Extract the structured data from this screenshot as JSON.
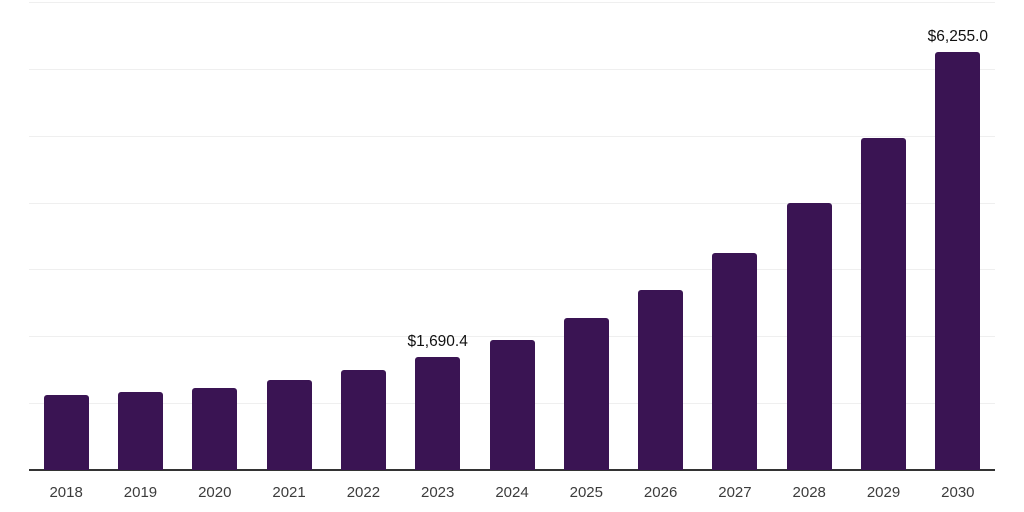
{
  "chart_data": {
    "type": "bar",
    "title": "",
    "categories": [
      "2018",
      "2019",
      "2020",
      "2021",
      "2022",
      "2023",
      "2024",
      "2025",
      "2026",
      "2027",
      "2028",
      "2029",
      "2030"
    ],
    "values": [
      1120,
      1165,
      1225,
      1345,
      1495,
      1690.4,
      1940,
      2270,
      2690,
      3240,
      3990,
      4960,
      6255
    ],
    "annotations": [
      {
        "category": "2023",
        "label": "$1,690.4"
      },
      {
        "category": "2030",
        "label": "$6,255.0"
      }
    ],
    "xlabel": "",
    "ylabel": "",
    "ylim": [
      0,
      7000
    ],
    "gridline_step": 1000,
    "grid": true,
    "legend": "none",
    "colors": {
      "bar": "#3A1453",
      "gridline": "#EFEFEF",
      "axis_line": "#333333",
      "data_label": "#111111",
      "tick_label": "#3C3C3C",
      "background": "#FFFFFF"
    }
  }
}
